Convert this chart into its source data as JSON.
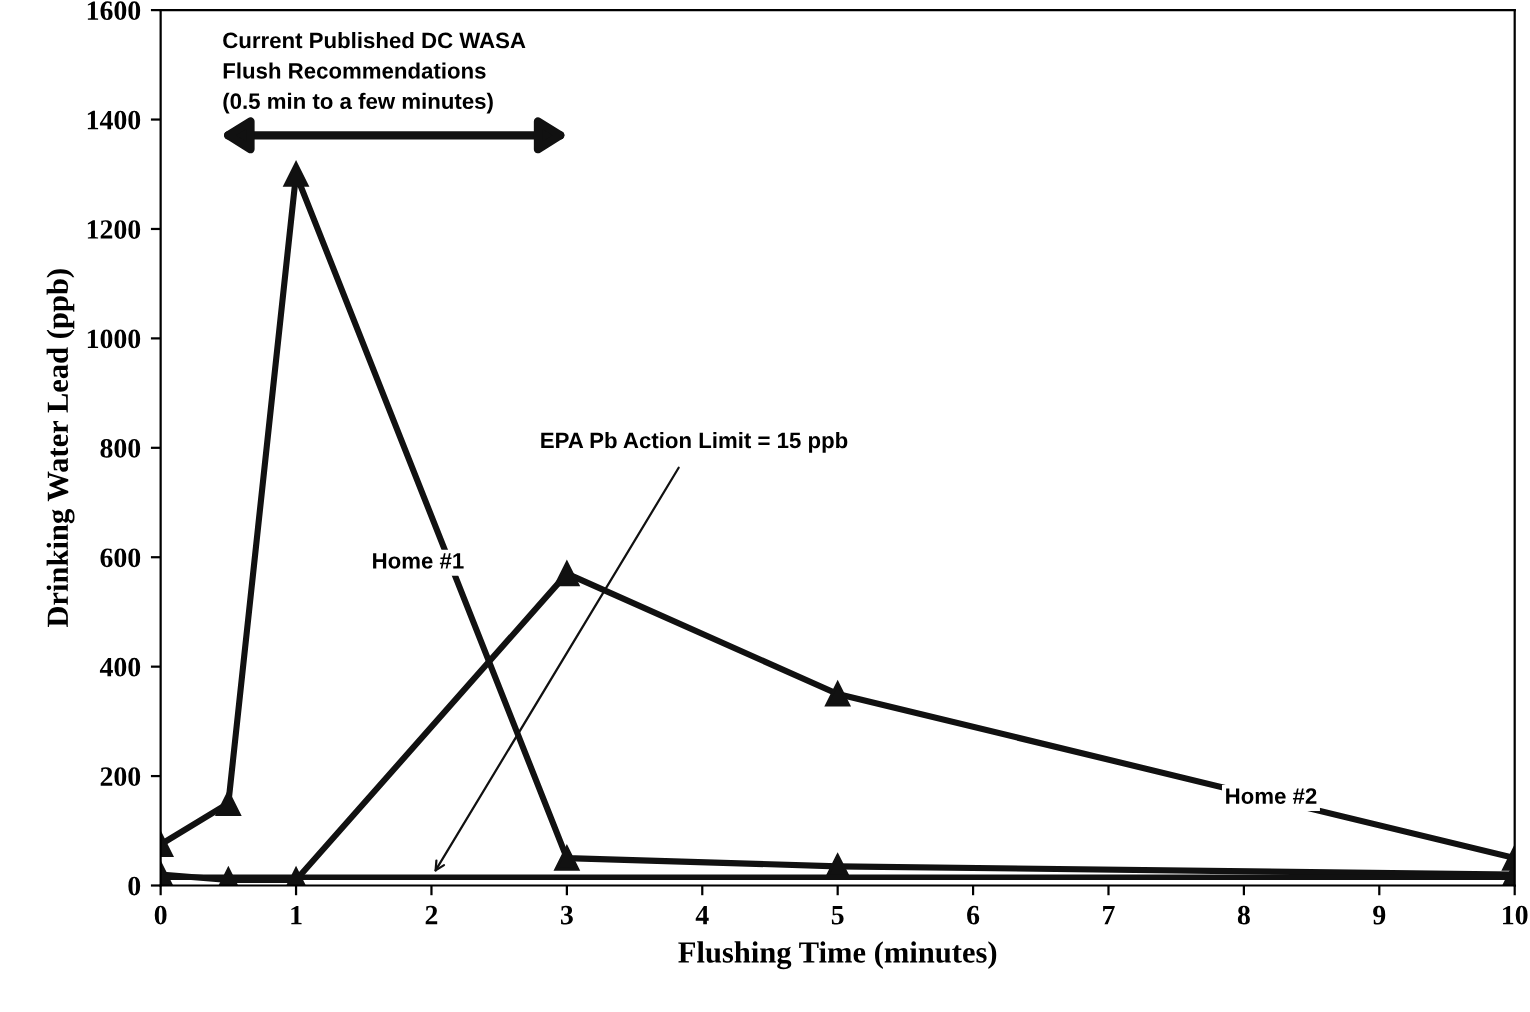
{
  "chart_data": {
    "type": "line",
    "xlabel": "Flushing Time (minutes)",
    "ylabel": "Drinking Water Lead (ppb)",
    "x": [
      0,
      0.5,
      1,
      3,
      5,
      10
    ],
    "series": [
      {
        "name": "Home #1",
        "color": "#111111",
        "values": [
          75,
          150,
          1300,
          50,
          35,
          20
        ]
      },
      {
        "name": "Home #2",
        "color": "#111111",
        "values": [
          20,
          10,
          10,
          570,
          350,
          50
        ]
      }
    ],
    "xlim": [
      0,
      10
    ],
    "xticks": [
      0,
      1,
      2,
      3,
      4,
      5,
      6,
      7,
      8,
      9,
      10
    ],
    "ylim": [
      0,
      1600
    ],
    "yticks": [
      0,
      200,
      400,
      600,
      800,
      1000,
      1200,
      1400,
      1600
    ],
    "ref_lines": [
      {
        "axis": "y",
        "value": 15,
        "color": "#111111",
        "line_style": "solid"
      }
    ],
    "annotations": [
      "Current Published DC WASA\nFlush Recommendations\n(0.5 min to a few minutes)",
      {
        "text": "EPA Pb Action Limit = 15 ppb",
        "x": 2,
        "y": 15
      }
    ],
    "marker": "triangle",
    "line_style": "solid",
    "grid": false,
    "legend": false
  }
}
